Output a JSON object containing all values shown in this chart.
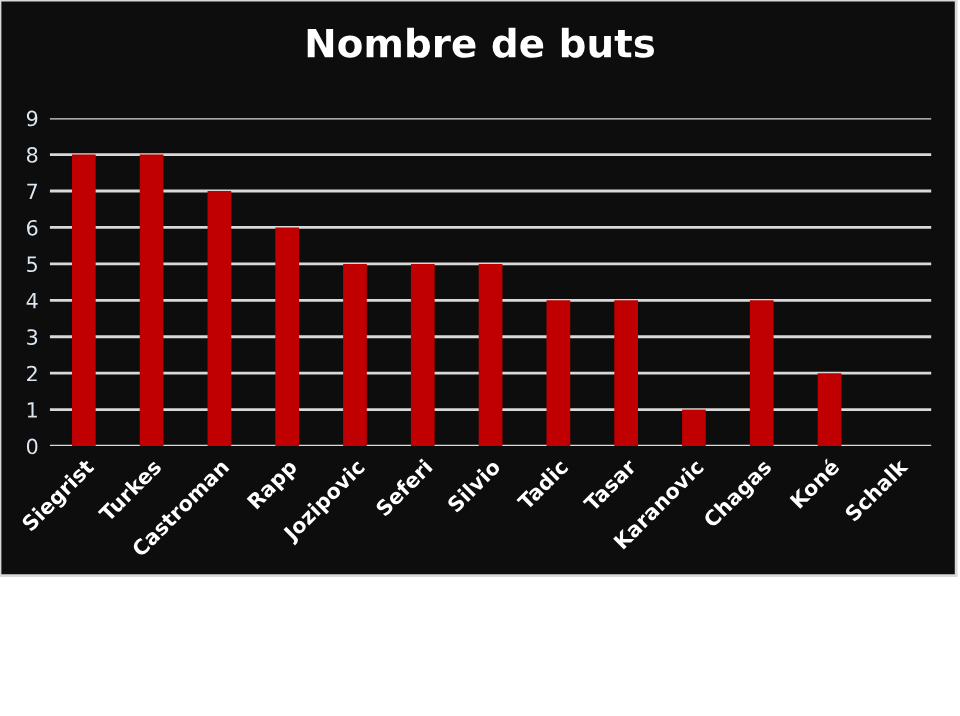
{
  "chart_data": {
    "type": "bar",
    "title": "Nombre de buts",
    "categories": [
      "Siegrist",
      "Turkes",
      "Castroman",
      "Rapp",
      "Jozipovic",
      "Seferi",
      "Silvio",
      "Tadic",
      "Tasar",
      "Karanovic",
      "Chagas",
      "Koné",
      "Schalk"
    ],
    "values": [
      8,
      8,
      7,
      6,
      5,
      5,
      5,
      4,
      4,
      1,
      4,
      2,
      0
    ],
    "color": "#c00000",
    "ylim": [
      0,
      9
    ],
    "yticks": [
      0,
      1,
      2,
      3,
      4,
      5,
      6,
      7,
      8,
      9
    ],
    "grid": "y",
    "legend": false
  }
}
